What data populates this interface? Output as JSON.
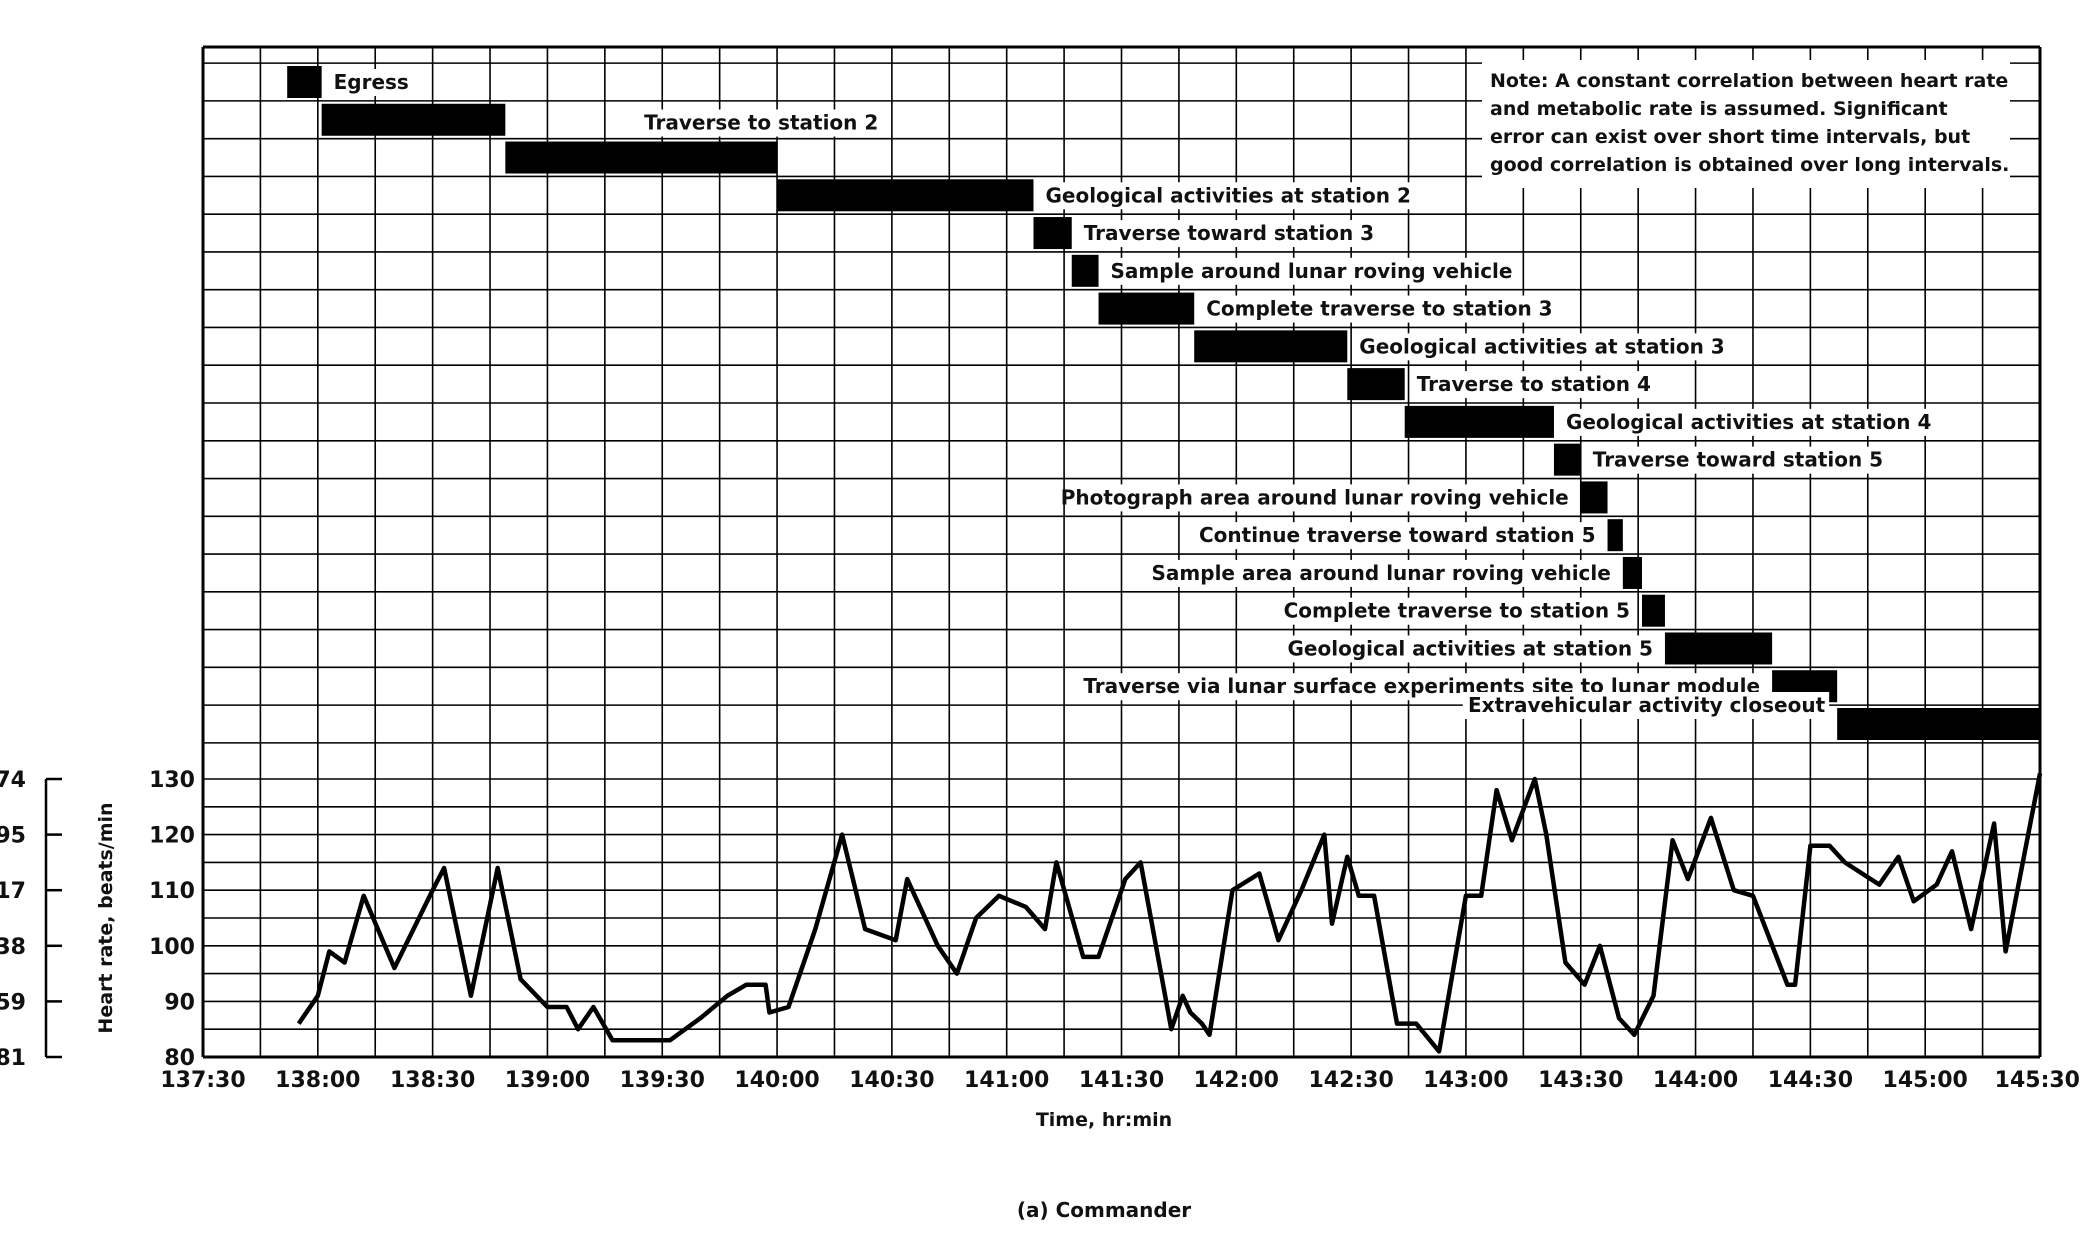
{
  "chart_data": {
    "type": "line",
    "caption": "(a) Commander",
    "note": [
      "Note:  A constant correlation between heart rate",
      "and metabolic rate is assumed.  Significant",
      "error can exist over short time intervals, but",
      "good correlation is obtained over long intervals."
    ],
    "xlabel": "Time, hr:min",
    "ylabel": "Heart rate, beats/min",
    "x_ticks": [
      "137:30",
      "138:00",
      "138:30",
      "139:00",
      "139:30",
      "140:00",
      "140:30",
      "141:00",
      "141:30",
      "142:00",
      "142:30",
      "143:00",
      "143:30",
      "144:00",
      "144:30",
      "145:00",
      "145:30"
    ],
    "xlim": [
      "137:30",
      "145:30"
    ],
    "y_ticks": [
      80,
      90,
      100,
      110,
      120,
      130
    ],
    "ylim": [
      80,
      130
    ],
    "left_axis_labels": [
      "74",
      "95",
      "17",
      "38",
      "59",
      "81"
    ],
    "grid": true,
    "activities": [
      {
        "label": "Egress",
        "start": "137:52",
        "end": "138:01"
      },
      {
        "label": "",
        "start": "138:01",
        "end": "138:49"
      },
      {
        "label": "Traverse to station 2",
        "start": "138:49",
        "end": "140:00"
      },
      {
        "label": "Geological activities at station 2",
        "start": "140:00",
        "end": "141:07"
      },
      {
        "label": "Traverse toward station 3",
        "start": "141:07",
        "end": "141:17"
      },
      {
        "label": "Sample around lunar roving vehicle",
        "start": "141:17",
        "end": "141:24"
      },
      {
        "label": "Complete traverse to station 3",
        "start": "141:24",
        "end": "141:49"
      },
      {
        "label": "Geological activities at station 3",
        "start": "141:49",
        "end": "142:29"
      },
      {
        "label": "Traverse to station 4",
        "start": "142:29",
        "end": "142:44"
      },
      {
        "label": "Geological activities at station 4",
        "start": "142:44",
        "end": "143:23"
      },
      {
        "label": "Traverse toward station 5",
        "start": "143:23",
        "end": "143:30"
      },
      {
        "label": "Photograph area around lunar roving vehicle",
        "start": "143:30",
        "end": "143:37"
      },
      {
        "label": "Continue traverse toward station 5",
        "start": "143:37",
        "end": "143:41"
      },
      {
        "label": "Sample area around lunar roving vehicle",
        "start": "143:41",
        "end": "143:46"
      },
      {
        "label": "Complete traverse to station 5",
        "start": "143:46",
        "end": "143:52"
      },
      {
        "label": "Geological activities at station 5",
        "start": "143:52",
        "end": "144:20"
      },
      {
        "label": "Traverse via lunar surface experiments site to lunar module",
        "start": "144:20",
        "end": "144:37"
      },
      {
        "label": "Extravehicular activity closeout",
        "start": "144:37",
        "end": "145:30"
      }
    ],
    "series": [
      {
        "values": [
          [
            "137:55",
            86
          ],
          [
            "138:00",
            91
          ],
          [
            "138:03",
            99
          ],
          [
            "138:07",
            97
          ],
          [
            "138:12",
            109
          ],
          [
            "138:20",
            96
          ],
          [
            "138:30",
            110
          ],
          [
            "138:33",
            114
          ],
          [
            "138:40",
            91
          ],
          [
            "138:47",
            114
          ],
          [
            "138:53",
            94
          ],
          [
            "139:00",
            89
          ],
          [
            "139:05",
            89
          ],
          [
            "139:08",
            85
          ],
          [
            "139:12",
            89
          ],
          [
            "139:17",
            83
          ],
          [
            "139:32",
            83
          ],
          [
            "139:40",
            87
          ],
          [
            "139:47",
            91
          ],
          [
            "139:52",
            93
          ],
          [
            "139:57",
            93
          ],
          [
            "139:58",
            88
          ],
          [
            "140:03",
            89
          ],
          [
            "140:10",
            103
          ],
          [
            "140:17",
            120
          ],
          [
            "140:23",
            103
          ],
          [
            "140:31",
            101
          ],
          [
            "140:34",
            112
          ],
          [
            "140:42",
            100
          ],
          [
            "140:47",
            95
          ],
          [
            "140:52",
            105
          ],
          [
            "140:58",
            109
          ],
          [
            "141:05",
            107
          ],
          [
            "141:10",
            103
          ],
          [
            "141:13",
            115
          ],
          [
            "141:20",
            98
          ],
          [
            "141:24",
            98
          ],
          [
            "141:31",
            112
          ],
          [
            "141:35",
            115
          ],
          [
            "141:43",
            85
          ],
          [
            "141:46",
            91
          ],
          [
            "141:48",
            88
          ],
          [
            "141:51",
            86
          ],
          [
            "141:53",
            84
          ],
          [
            "141:59",
            110
          ],
          [
            "142:06",
            113
          ],
          [
            "142:11",
            101
          ],
          [
            "142:17",
            110
          ],
          [
            "142:23",
            120
          ],
          [
            "142:25",
            104
          ],
          [
            "142:29",
            116
          ],
          [
            "142:32",
            109
          ],
          [
            "142:36",
            109
          ],
          [
            "142:42",
            86
          ],
          [
            "142:47",
            86
          ],
          [
            "142:53",
            81
          ],
          [
            "143:00",
            109
          ],
          [
            "143:04",
            109
          ],
          [
            "143:08",
            128
          ],
          [
            "143:12",
            119
          ],
          [
            "143:18",
            130
          ],
          [
            "143:21",
            120
          ],
          [
            "143:26",
            97
          ],
          [
            "143:31",
            93
          ],
          [
            "143:35",
            100
          ],
          [
            "143:40",
            87
          ],
          [
            "143:44",
            84
          ],
          [
            "143:49",
            91
          ],
          [
            "143:54",
            119
          ],
          [
            "143:58",
            112
          ],
          [
            "144:04",
            123
          ],
          [
            "144:10",
            110
          ],
          [
            "144:15",
            109
          ],
          [
            "144:24",
            93
          ],
          [
            "144:26",
            93
          ],
          [
            "144:30",
            118
          ],
          [
            "144:35",
            118
          ],
          [
            "144:39",
            115
          ],
          [
            "144:48",
            111
          ],
          [
            "144:53",
            116
          ],
          [
            "144:57",
            108
          ],
          [
            "145:03",
            111
          ],
          [
            "145:07",
            117
          ],
          [
            "145:12",
            103
          ],
          [
            "145:18",
            122
          ],
          [
            "145:21",
            99
          ],
          [
            "145:30",
            131
          ]
        ]
      }
    ]
  }
}
